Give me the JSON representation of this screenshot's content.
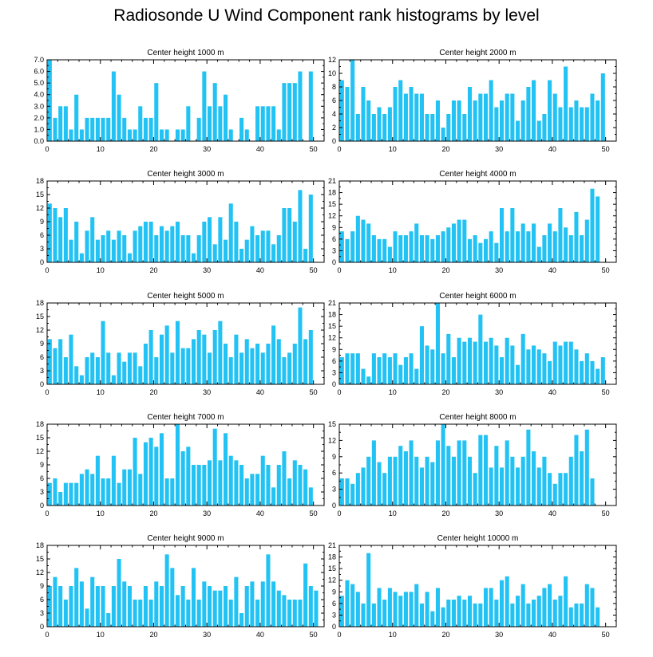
{
  "title": "Radiosonde U Wind Component rank histograms by level",
  "colors": {
    "bar": "#22C3F4",
    "axis": "#000000"
  },
  "chart_data": [
    {
      "type": "bar",
      "title": "Center height 1000 m",
      "xlim": [
        0,
        52
      ],
      "ylim": [
        0,
        7
      ],
      "yticks": [
        0,
        1,
        2,
        3,
        4,
        5,
        6,
        7
      ],
      "ytick_labels": [
        "0.0",
        "1.0",
        "2.0",
        "3.0",
        "4.0",
        "5.0",
        "6.0",
        "7.0"
      ],
      "xticks": [
        0,
        10,
        20,
        30,
        40,
        50
      ],
      "values": [
        7,
        2,
        3,
        3,
        1,
        4,
        1,
        2,
        2,
        2,
        2,
        2,
        6,
        4,
        2,
        1,
        1,
        3,
        2,
        2,
        5,
        1,
        1,
        0,
        1,
        1,
        3,
        0,
        2,
        6,
        3,
        5,
        3,
        4,
        1,
        0,
        2,
        1,
        0,
        3,
        3,
        3,
        3,
        1,
        5,
        5,
        5,
        6,
        0,
        6,
        0,
        0
      ]
    },
    {
      "type": "bar",
      "title": "Center height 2000 m",
      "xlim": [
        0,
        52
      ],
      "ylim": [
        0,
        12
      ],
      "yticks": [
        0,
        2,
        4,
        6,
        8,
        10,
        12
      ],
      "ytick_labels": [
        "0",
        "2",
        "4",
        "6",
        "8",
        "10",
        "12"
      ],
      "xticks": [
        0,
        10,
        20,
        30,
        40,
        50
      ],
      "values": [
        9,
        8,
        12,
        4,
        8,
        6,
        4,
        5,
        4,
        5,
        8,
        9,
        7,
        8,
        7,
        7,
        4,
        4,
        6,
        2,
        4,
        6,
        6,
        4,
        8,
        6,
        7,
        7,
        9,
        5,
        6,
        7,
        7,
        3,
        6,
        8,
        9,
        3,
        4,
        9,
        7,
        5,
        11,
        5,
        6,
        5,
        5,
        7,
        6,
        10,
        0,
        0
      ]
    },
    {
      "type": "bar",
      "title": "Center height 3000 m",
      "xlim": [
        0,
        52
      ],
      "ylim": [
        0,
        18
      ],
      "yticks": [
        0,
        3,
        6,
        9,
        12,
        15,
        18
      ],
      "ytick_labels": [
        "0",
        "3",
        "6",
        "9",
        "12",
        "15",
        "18"
      ],
      "xticks": [
        0,
        10,
        20,
        30,
        40,
        50
      ],
      "values": [
        13,
        12,
        10,
        12,
        5,
        9,
        2,
        7,
        10,
        5,
        6,
        7,
        5,
        7,
        6,
        2,
        7,
        8,
        9,
        9,
        6,
        8,
        7,
        8,
        9,
        6,
        6,
        2,
        6,
        9,
        10,
        4,
        10,
        5,
        13,
        9,
        3,
        5,
        8,
        6,
        7,
        7,
        4,
        6,
        12,
        12,
        9,
        16,
        3,
        15,
        0,
        0
      ]
    },
    {
      "type": "bar",
      "title": "Center height 4000 m",
      "xlim": [
        0,
        52
      ],
      "ylim": [
        0,
        21
      ],
      "yticks": [
        0,
        3,
        6,
        9,
        12,
        15,
        18,
        21
      ],
      "ytick_labels": [
        "0",
        "3",
        "6",
        "9",
        "12",
        "15",
        "18",
        "21"
      ],
      "xticks": [
        0,
        10,
        20,
        30,
        40,
        50
      ],
      "values": [
        8,
        6,
        8,
        12,
        11,
        10,
        7,
        6,
        6,
        4,
        8,
        7,
        7,
        8,
        10,
        7,
        7,
        6,
        7,
        8,
        9,
        10,
        11,
        11,
        6,
        7,
        5,
        6,
        8,
        5,
        14,
        8,
        14,
        8,
        10,
        8,
        10,
        4,
        7,
        10,
        8,
        14,
        9,
        7,
        13,
        7,
        11,
        19,
        17,
        0,
        0,
        0
      ]
    },
    {
      "type": "bar",
      "title": "Center height 5000 m",
      "xlim": [
        0,
        52
      ],
      "ylim": [
        0,
        18
      ],
      "yticks": [
        0,
        3,
        6,
        9,
        12,
        15,
        18
      ],
      "ytick_labels": [
        "0",
        "3",
        "6",
        "9",
        "12",
        "15",
        "18"
      ],
      "xticks": [
        0,
        10,
        20,
        30,
        40,
        50
      ],
      "values": [
        10,
        8,
        10,
        6,
        11,
        4,
        2,
        6,
        7,
        6,
        14,
        7,
        2,
        7,
        5,
        7,
        7,
        4,
        9,
        12,
        6,
        11,
        13,
        7,
        14,
        8,
        8,
        10,
        12,
        11,
        7,
        12,
        14,
        9,
        6,
        11,
        7,
        10,
        8,
        9,
        7,
        9,
        13,
        10,
        6,
        7,
        9,
        17,
        10,
        12,
        0,
        0
      ]
    },
    {
      "type": "bar",
      "title": "Center height 6000 m",
      "xlim": [
        0,
        52
      ],
      "ylim": [
        0,
        21
      ],
      "yticks": [
        0,
        3,
        6,
        9,
        12,
        15,
        18,
        21
      ],
      "ytick_labels": [
        "0",
        "3",
        "6",
        "9",
        "12",
        "15",
        "18",
        "21"
      ],
      "xticks": [
        0,
        10,
        20,
        30,
        40,
        50
      ],
      "values": [
        7,
        8,
        8,
        8,
        4,
        2,
        8,
        7,
        8,
        7,
        8,
        5,
        7,
        8,
        4,
        15,
        10,
        9,
        21,
        8,
        13,
        7,
        12,
        11,
        12,
        11,
        18,
        11,
        12,
        10,
        7,
        12,
        10,
        5,
        13,
        9,
        10,
        9,
        8,
        6,
        11,
        10,
        11,
        11,
        9,
        6,
        8,
        6,
        4,
        7,
        0,
        0
      ]
    },
    {
      "type": "bar",
      "title": "Center height 7000 m",
      "xlim": [
        0,
        52
      ],
      "ylim": [
        0,
        18
      ],
      "yticks": [
        0,
        3,
        6,
        9,
        12,
        15,
        18
      ],
      "ytick_labels": [
        "0",
        "3",
        "6",
        "9",
        "12",
        "15",
        "18"
      ],
      "xticks": [
        0,
        10,
        20,
        30,
        40,
        50
      ],
      "values": [
        5,
        6,
        3,
        5,
        5,
        5,
        7,
        8,
        7,
        11,
        6,
        6,
        11,
        5,
        8,
        8,
        15,
        7,
        14,
        15,
        13,
        16,
        6,
        6,
        18,
        12,
        13,
        9,
        9,
        9,
        10,
        17,
        10,
        16,
        11,
        10,
        9,
        6,
        7,
        7,
        11,
        9,
        4,
        9,
        12,
        6,
        10,
        9,
        8,
        4,
        0,
        0
      ]
    },
    {
      "type": "bar",
      "title": "Center height 8000 m",
      "xlim": [
        0,
        52
      ],
      "ylim": [
        0,
        15
      ],
      "yticks": [
        0,
        3,
        6,
        9,
        12,
        15
      ],
      "ytick_labels": [
        "0",
        "3",
        "6",
        "9",
        "12",
        "15"
      ],
      "xticks": [
        0,
        10,
        20,
        30,
        40,
        50
      ],
      "values": [
        5,
        5,
        4,
        6,
        7,
        9,
        12,
        8,
        6,
        9,
        9,
        11,
        10,
        12,
        9,
        7,
        9,
        8,
        12,
        15,
        11,
        9,
        12,
        12,
        9,
        6,
        13,
        13,
        7,
        11,
        7,
        12,
        9,
        7,
        9,
        14,
        10,
        7,
        9,
        6,
        4,
        6,
        6,
        9,
        13,
        10,
        14,
        5,
        0,
        0,
        0,
        0
      ]
    },
    {
      "type": "bar",
      "title": "Center height 9000 m",
      "xlim": [
        0,
        52
      ],
      "ylim": [
        0,
        18
      ],
      "yticks": [
        0,
        3,
        6,
        9,
        12,
        15,
        18
      ],
      "ytick_labels": [
        "0",
        "3",
        "6",
        "9",
        "12",
        "15",
        "18"
      ],
      "xticks": [
        0,
        10,
        20,
        30,
        40,
        50
      ],
      "values": [
        9,
        11,
        9,
        6,
        9,
        13,
        10,
        4,
        11,
        9,
        9,
        3,
        9,
        15,
        10,
        9,
        6,
        6,
        9,
        6,
        10,
        9,
        16,
        13,
        7,
        9,
        6,
        13,
        6,
        10,
        9,
        8,
        8,
        9,
        6,
        11,
        3,
        9,
        10,
        6,
        10,
        16,
        10,
        8,
        7,
        6,
        6,
        6,
        14,
        9,
        8,
        0
      ]
    },
    {
      "type": "bar",
      "title": "Center height 10000 m",
      "xlim": [
        0,
        52
      ],
      "ylim": [
        0,
        21
      ],
      "yticks": [
        0,
        3,
        6,
        9,
        12,
        15,
        18,
        21
      ],
      "ytick_labels": [
        "0",
        "3",
        "6",
        "9",
        "12",
        "15",
        "18",
        "21"
      ],
      "xticks": [
        0,
        10,
        20,
        30,
        40,
        50
      ],
      "values": [
        8,
        12,
        11,
        9,
        6,
        19,
        6,
        10,
        7,
        10,
        9,
        8,
        9,
        9,
        11,
        6,
        9,
        4,
        10,
        5,
        7,
        7,
        8,
        7,
        8,
        6,
        6,
        10,
        10,
        7,
        12,
        13,
        6,
        8,
        11,
        6,
        7,
        8,
        10,
        11,
        7,
        8,
        13,
        5,
        6,
        6,
        11,
        10,
        5,
        0,
        0,
        0
      ]
    }
  ]
}
